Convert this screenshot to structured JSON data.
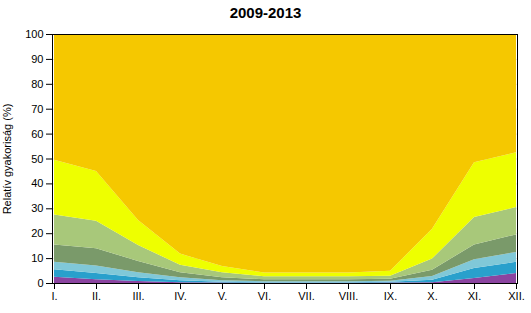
{
  "chart_data": {
    "type": "area",
    "title": "2009-2013",
    "ylabel": "Relatív gyakoriság (%)",
    "categories": [
      "I.",
      "II.",
      "III.",
      "IV.",
      "V.",
      "VI.",
      "VII.",
      "VIII.",
      "IX.",
      "X.",
      "XI.",
      "XII."
    ],
    "series": [
      {
        "color": "#8B44A0",
        "values": [
          2.5,
          1.5,
          0.8,
          0.3,
          0.2,
          0.1,
          0.1,
          0.1,
          0.2,
          0.3,
          2.0,
          4.0
        ]
      },
      {
        "color": "#29A0CC",
        "values": [
          3.0,
          2.5,
          1.5,
          0.8,
          0.3,
          0.2,
          0.2,
          0.2,
          0.3,
          1.0,
          4.0,
          4.5
        ]
      },
      {
        "color": "#80C8D8",
        "values": [
          3.0,
          3.0,
          2.0,
          1.2,
          0.6,
          0.4,
          0.4,
          0.4,
          0.4,
          1.5,
          3.5,
          4.0
        ]
      },
      {
        "color": "#7A9A6A",
        "values": [
          7.0,
          7.0,
          4.5,
          2.0,
          1.2,
          0.8,
          0.8,
          0.8,
          0.8,
          2.5,
          6.0,
          7.0
        ]
      },
      {
        "color": "#A8C87A",
        "values": [
          12.0,
          11.0,
          6.5,
          3.0,
          2.0,
          1.2,
          1.2,
          1.2,
          1.2,
          4.5,
          11.0,
          11.0
        ]
      },
      {
        "color": "#EEFF00",
        "values": [
          22.0,
          20.0,
          10.0,
          4.5,
          2.5,
          1.5,
          1.5,
          1.5,
          2.0,
          12.0,
          22.0,
          22.0
        ]
      },
      {
        "color": "#F5C800",
        "values": [
          50.5,
          55.0,
          74.7,
          88.2,
          93.2,
          95.8,
          95.8,
          95.8,
          95.1,
          78.2,
          51.5,
          47.5
        ]
      }
    ],
    "stacked": true,
    "ylim": [
      0,
      100
    ],
    "yticks": [
      0,
      10,
      20,
      30,
      40,
      50,
      60,
      70,
      80,
      90,
      100
    ],
    "grid": true
  }
}
